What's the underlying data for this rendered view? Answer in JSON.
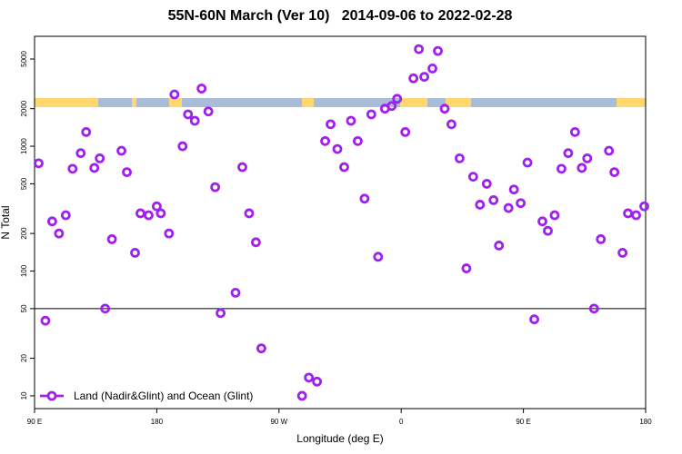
{
  "chart_data": {
    "type": "scatter",
    "title": "55N-60N March (Ver 10)   2014-09-06 to 2022-02-28",
    "xlabel": "Longitude (deg E)",
    "ylabel": "N Total",
    "log_y": true,
    "legend": "bottomleft",
    "hline": 50,
    "xlim": [
      90,
      540
    ],
    "ylim": [
      7.9,
      7600
    ],
    "xticks": [
      {
        "value": 90,
        "label": "90 E"
      },
      {
        "value": 180,
        "label": "180"
      },
      {
        "value": 270,
        "label": "90 W"
      },
      {
        "value": 360,
        "label": "0"
      },
      {
        "value": 450,
        "label": "90 E"
      },
      {
        "value": 540,
        "label": "180"
      }
    ],
    "yticks": [
      10,
      20,
      50,
      100,
      200,
      500,
      1000,
      2000,
      5000
    ],
    "series": [
      {
        "name": "Land (Nadir&Glint) and Ocean (Glint)",
        "color": "#a020f0",
        "x": [
          93,
          98,
          103,
          108,
          113,
          118,
          124,
          128,
          134,
          138,
          142,
          147,
          154,
          158,
          164,
          168,
          174,
          180,
          183,
          189,
          193,
          199,
          203,
          208,
          213,
          218,
          223,
          227,
          238,
          243,
          248,
          253,
          257,
          287,
          292,
          298,
          304,
          308,
          313,
          318,
          323,
          328,
          333,
          338,
          343,
          348,
          353,
          357,
          363,
          369,
          373,
          377,
          383,
          387,
          392,
          397,
          403,
          408,
          413,
          418,
          423,
          428,
          432,
          439,
          443,
          448,
          453,
          458,
          464,
          468,
          473,
          478,
          483,
          488,
          493,
          497,
          502,
          507,
          513,
          517,
          523,
          527,
          533,
          539
        ],
        "values": [
          730,
          40,
          250,
          200,
          280,
          660,
          880,
          1300,
          670,
          800,
          50,
          180,
          920,
          620,
          140,
          290,
          280,
          330,
          290,
          200,
          2600,
          1000,
          1800,
          1600,
          2900,
          1900,
          470,
          46,
          67,
          680,
          290,
          170,
          24,
          10,
          14,
          13,
          1100,
          1500,
          950,
          680,
          1600,
          1100,
          380,
          1800,
          130,
          2000,
          2100,
          2400,
          1300,
          3500,
          6000,
          3600,
          4200,
          5800,
          2000,
          1500,
          800,
          105,
          570,
          340,
          500,
          370,
          160,
          320,
          450,
          350,
          740,
          41,
          250,
          210,
          280,
          660,
          880,
          1300,
          670,
          800,
          50,
          180,
          920,
          620,
          140,
          290,
          280,
          330
        ]
      }
    ]
  }
}
